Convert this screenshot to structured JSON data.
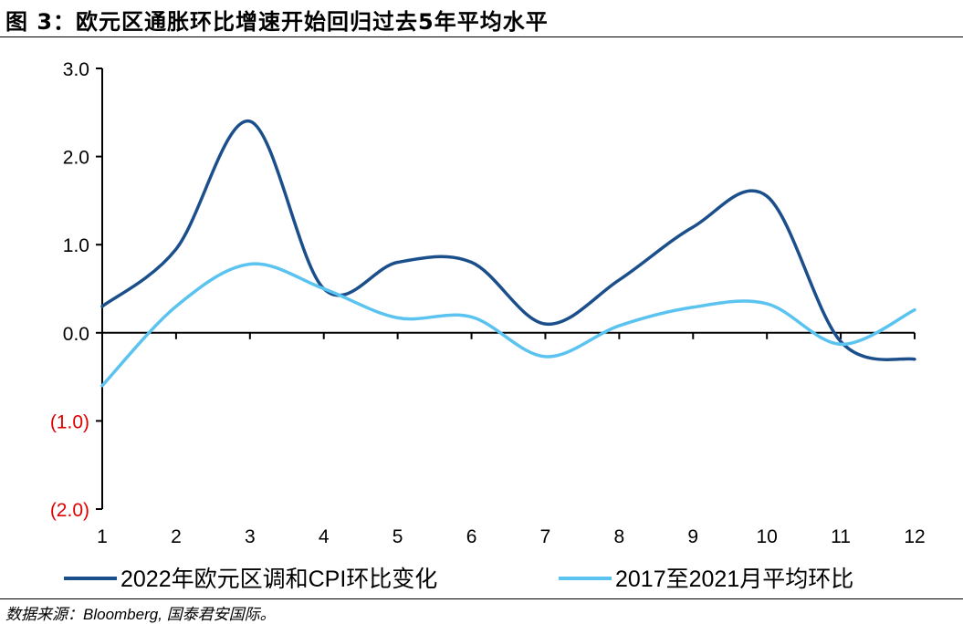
{
  "title": "图 3：欧元区通胀环比增速开始回归过去5年平均水平",
  "source": "数据来源：Bloomberg, 国泰君安国际。",
  "chart_data": {
    "type": "line",
    "smooth": true,
    "x": [
      1,
      2,
      3,
      4,
      5,
      6,
      7,
      8,
      9,
      10,
      11,
      12
    ],
    "xtick_labels": [
      "1",
      "2",
      "3",
      "4",
      "5",
      "6",
      "7",
      "8",
      "9",
      "10",
      "11",
      "12"
    ],
    "ylim": [
      -2,
      3
    ],
    "yticks": [
      3,
      2,
      1,
      0,
      -1,
      -2
    ],
    "ytick_labels": [
      "3.0",
      "2.0",
      "1.0",
      "0.0",
      "(1.0)",
      "(2.0)"
    ],
    "negative_label_color": "#e00000",
    "grid": false,
    "legend_position": "bottom",
    "series": [
      {
        "name": "2022年欧元区调和CPI环比变化",
        "color": "#1b4f8c",
        "values": [
          0.3,
          0.95,
          2.4,
          0.5,
          0.8,
          0.8,
          0.1,
          0.6,
          1.2,
          1.55,
          -0.1,
          -0.3
        ]
      },
      {
        "name": "2017至2021月平均环比",
        "color": "#5bc3ef",
        "values": [
          -0.6,
          0.3,
          0.78,
          0.5,
          0.17,
          0.18,
          -0.27,
          0.08,
          0.29,
          0.33,
          -0.13,
          0.26
        ]
      }
    ]
  }
}
